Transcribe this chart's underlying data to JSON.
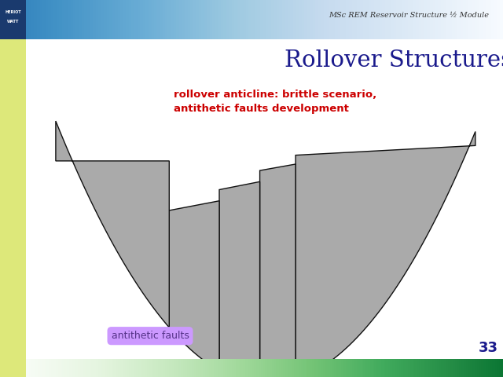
{
  "title": "Rollover Structures",
  "subtitle": "rollover anticline: brittle scenario,\nantithetic faults development",
  "header_text": "MSc REM Reservoir Structure ½ Module",
  "label_text": "antithetic faults",
  "page_number": "33",
  "bg_color": "#ffffff",
  "block_color": "#aaaaaa",
  "block_edge_color": "#111111",
  "title_color": "#1a1a8c",
  "subtitle_color": "#cc0000",
  "header_color": "#555555",
  "label_bg_color": "#cc99ff",
  "label_text_color": "#553388",
  "left_bar_color": "#dde87a",
  "bottom_bar_color": "#66bb44"
}
